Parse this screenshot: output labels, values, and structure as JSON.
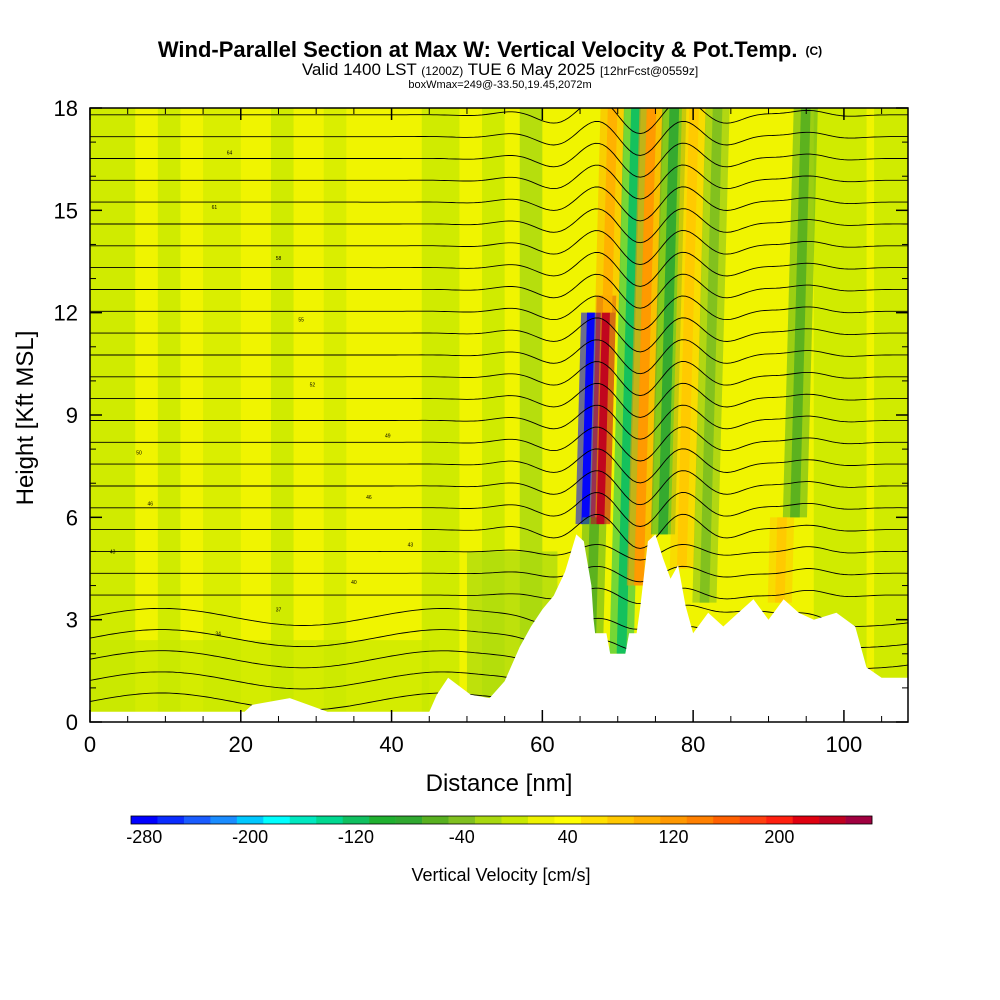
{
  "chart_data": {
    "type": "heatmap",
    "title": "Wind-Parallel Section at Max W: Vertical Velocity & Pot.Temp.",
    "title_mark": "(C)",
    "subtitle_parts": [
      "Valid 1400 LST ",
      "(1200Z)",
      " TUE 6 May 2025 ",
      "[12hrFcst@0559z]"
    ],
    "subtitle2": "boxWmax=249@-33.50,19.45,2072m",
    "xlabel": "Distance [nm]",
    "ylabel": "Height [Kft MSL]",
    "xlim": [
      0,
      108.5
    ],
    "ylim": [
      0,
      18
    ],
    "x_ticks": [
      "0",
      "20",
      "40",
      "60",
      "80",
      "100"
    ],
    "y_ticks": [
      "0",
      "3",
      "6",
      "9",
      "12",
      "15",
      "18"
    ],
    "colorbar": {
      "title": "Vertical Velocity [cm/s]",
      "min": -290,
      "max": 270,
      "step": 20,
      "tick_labels": [
        "-280",
        "-200",
        "-120",
        "-40",
        "40",
        "120",
        "200"
      ],
      "colors": [
        "#0000ff",
        "#0a2cff",
        "#1a5cff",
        "#1a8cff",
        "#00c8ff",
        "#00ffff",
        "#00e8c0",
        "#00d890",
        "#10c060",
        "#20b030",
        "#30a830",
        "#58b020",
        "#80c020",
        "#a8d810",
        "#c8e800",
        "#eef200",
        "#ffff00",
        "#ffe000",
        "#ffc800",
        "#ffb000",
        "#ff9800",
        "#ff8000",
        "#ff6000",
        "#ff4010",
        "#ff2010",
        "#e00010",
        "#c00020",
        "#a00040"
      ]
    },
    "terrain_kft": [
      [
        0,
        0.3
      ],
      [
        20.5,
        0.3
      ],
      [
        21.5,
        0.5
      ],
      [
        26.5,
        0.7
      ],
      [
        29,
        0.5
      ],
      [
        31.5,
        0.3
      ],
      [
        45,
        0.3
      ],
      [
        46,
        0.8
      ],
      [
        47.5,
        1.3
      ],
      [
        50.5,
        0.8
      ],
      [
        53,
        0.7
      ],
      [
        55,
        1.2
      ],
      [
        57,
        2.2
      ],
      [
        58.5,
        2.8
      ],
      [
        60,
        3.3
      ],
      [
        61.5,
        3.7
      ],
      [
        63,
        4.4
      ],
      [
        64.5,
        5.5
      ],
      [
        65.5,
        5.3
      ],
      [
        66.5,
        4.0
      ],
      [
        66.8,
        3.0
      ],
      [
        67,
        2.6
      ],
      [
        68.5,
        2.6
      ],
      [
        69,
        2.0
      ],
      [
        71,
        2.0
      ],
      [
        71.5,
        2.6
      ],
      [
        72.5,
        2.6
      ],
      [
        73,
        3.4
      ],
      [
        74,
        5.3
      ],
      [
        75,
        5.5
      ],
      [
        76,
        4.8
      ],
      [
        77,
        4.2
      ],
      [
        78,
        4.6
      ],
      [
        79,
        3.4
      ],
      [
        80,
        2.6
      ],
      [
        82,
        3.2
      ],
      [
        84,
        2.8
      ],
      [
        86,
        3.2
      ],
      [
        88,
        3.6
      ],
      [
        90,
        3.0
      ],
      [
        92,
        3.6
      ],
      [
        94,
        3.2
      ],
      [
        96,
        3.0
      ],
      [
        99,
        3.2
      ],
      [
        101.5,
        2.8
      ],
      [
        103,
        1.6
      ],
      [
        105,
        1.3
      ],
      [
        108.5,
        1.3
      ]
    ],
    "w_features": [
      {
        "x": 65.7,
        "w_cm_s": -280,
        "from_kft": 5.8,
        "to_kft": 12.0
      },
      {
        "x": 66.5,
        "w_cm_s": -60,
        "from_kft": 2.6,
        "to_kft": 6.0
      },
      {
        "x": 67.7,
        "w_cm_s": 249,
        "from_kft": 5.8,
        "to_kft": 12.5
      },
      {
        "x": 68.6,
        "w_cm_s": 90,
        "from_kft": 12.0,
        "to_kft": 18.0
      },
      {
        "x": 70.5,
        "w_cm_s": -120,
        "from_kft": 2.0,
        "to_kft": 18.0
      },
      {
        "x": 72.8,
        "w_cm_s": 110,
        "from_kft": 4.0,
        "to_kft": 18.0
      },
      {
        "x": 76.0,
        "w_cm_s": -80,
        "from_kft": 5.5,
        "to_kft": 18.0
      },
      {
        "x": 78.5,
        "w_cm_s": 80,
        "from_kft": 4.5,
        "to_kft": 18.0
      },
      {
        "x": 81.5,
        "w_cm_s": -40,
        "from_kft": 3.5,
        "to_kft": 18.0
      },
      {
        "x": 93.5,
        "w_cm_s": -70,
        "from_kft": 6.0,
        "to_kft": 18.0
      },
      {
        "x": 91.5,
        "w_cm_s": 80,
        "from_kft": 3.5,
        "to_kft": 6.0
      }
    ],
    "theta_labels": [
      {
        "text": "64",
        "x": 18.5,
        "kft": 16.7
      },
      {
        "text": "61",
        "x": 16.5,
        "kft": 15.1
      },
      {
        "text": "58",
        "x": 25.0,
        "kft": 13.6
      },
      {
        "text": "55",
        "x": 28.0,
        "kft": 11.8
      },
      {
        "text": "52",
        "x": 29.5,
        "kft": 9.9
      },
      {
        "text": "49",
        "x": 39.5,
        "kft": 8.4
      },
      {
        "text": "46",
        "x": 37.0,
        "kft": 6.6
      },
      {
        "text": "43",
        "x": 42.5,
        "kft": 5.2
      },
      {
        "text": "40",
        "x": 35.0,
        "kft": 4.1
      },
      {
        "text": "37",
        "x": 25.0,
        "kft": 3.3
      },
      {
        "text": "34",
        "x": 17.0,
        "kft": 2.6
      },
      {
        "text": "50",
        "x": 6.5,
        "kft": 7.9
      },
      {
        "text": "46",
        "x": 8.0,
        "kft": 6.4
      },
      {
        "text": "43",
        "x": 3.0,
        "kft": 5.0
      }
    ]
  }
}
